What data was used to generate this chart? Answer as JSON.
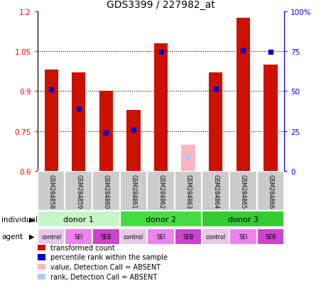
{
  "title": "GDS3399 / 227982_at",
  "samples": [
    "GSM284858",
    "GSM284859",
    "GSM284860",
    "GSM284861",
    "GSM284862",
    "GSM284863",
    "GSM284864",
    "GSM284865",
    "GSM284866"
  ],
  "red_bar_heights": [
    0.98,
    0.97,
    0.9,
    0.83,
    1.08,
    null,
    0.97,
    1.175,
    1.0
  ],
  "blue_marker_y": [
    0.905,
    0.835,
    0.745,
    0.754,
    1.048,
    null,
    0.91,
    1.052,
    1.048
  ],
  "absent_bar_height": [
    null,
    null,
    null,
    null,
    null,
    0.7,
    null,
    null,
    null
  ],
  "absent_rank_y": [
    null,
    null,
    null,
    null,
    null,
    0.655,
    null,
    null,
    null
  ],
  "ylim_left": [
    0.6,
    1.2
  ],
  "ylim_right": [
    0,
    100
  ],
  "yticks_left": [
    0.6,
    0.75,
    0.9,
    1.05,
    1.2
  ],
  "yticks_right": [
    0,
    25,
    50,
    75,
    100
  ],
  "ytick_labels_left": [
    "0.6",
    "0.75",
    "0.9",
    "1.05",
    "1.2"
  ],
  "ytick_labels_right": [
    "0",
    "25",
    "50",
    "75",
    "100%"
  ],
  "hlines": [
    0.75,
    0.9,
    1.05
  ],
  "donor_labels": [
    "donor 1",
    "donor 2",
    "donor 3"
  ],
  "donor_colors": [
    "#c8f5c8",
    "#44dd44",
    "#33cc33"
  ],
  "donor_ranges": [
    [
      0,
      3
    ],
    [
      3,
      6
    ],
    [
      6,
      9
    ]
  ],
  "agent_labels": [
    "control",
    "SEI",
    "SEB",
    "control",
    "SEI",
    "SEB",
    "control",
    "SEI",
    "SEB"
  ],
  "agent_colors_map": {
    "control": "#e8c8e8",
    "SEI": "#ee82ee",
    "SEB": "#cc44cc"
  },
  "bar_color": "#cc1100",
  "blue_color": "#0000cc",
  "absent_bar_color": "#ffb6c1",
  "absent_rank_color": "#aaccff",
  "bar_width": 0.5,
  "bar_base": 0.6,
  "sample_box_color": "#cccccc",
  "legend_items": [
    [
      "#cc1100",
      "transformed count"
    ],
    [
      "#0000cc",
      "percentile rank within the sample"
    ],
    [
      "#ffb6c1",
      "value, Detection Call = ABSENT"
    ],
    [
      "#aaccff",
      "rank, Detection Call = ABSENT"
    ]
  ]
}
